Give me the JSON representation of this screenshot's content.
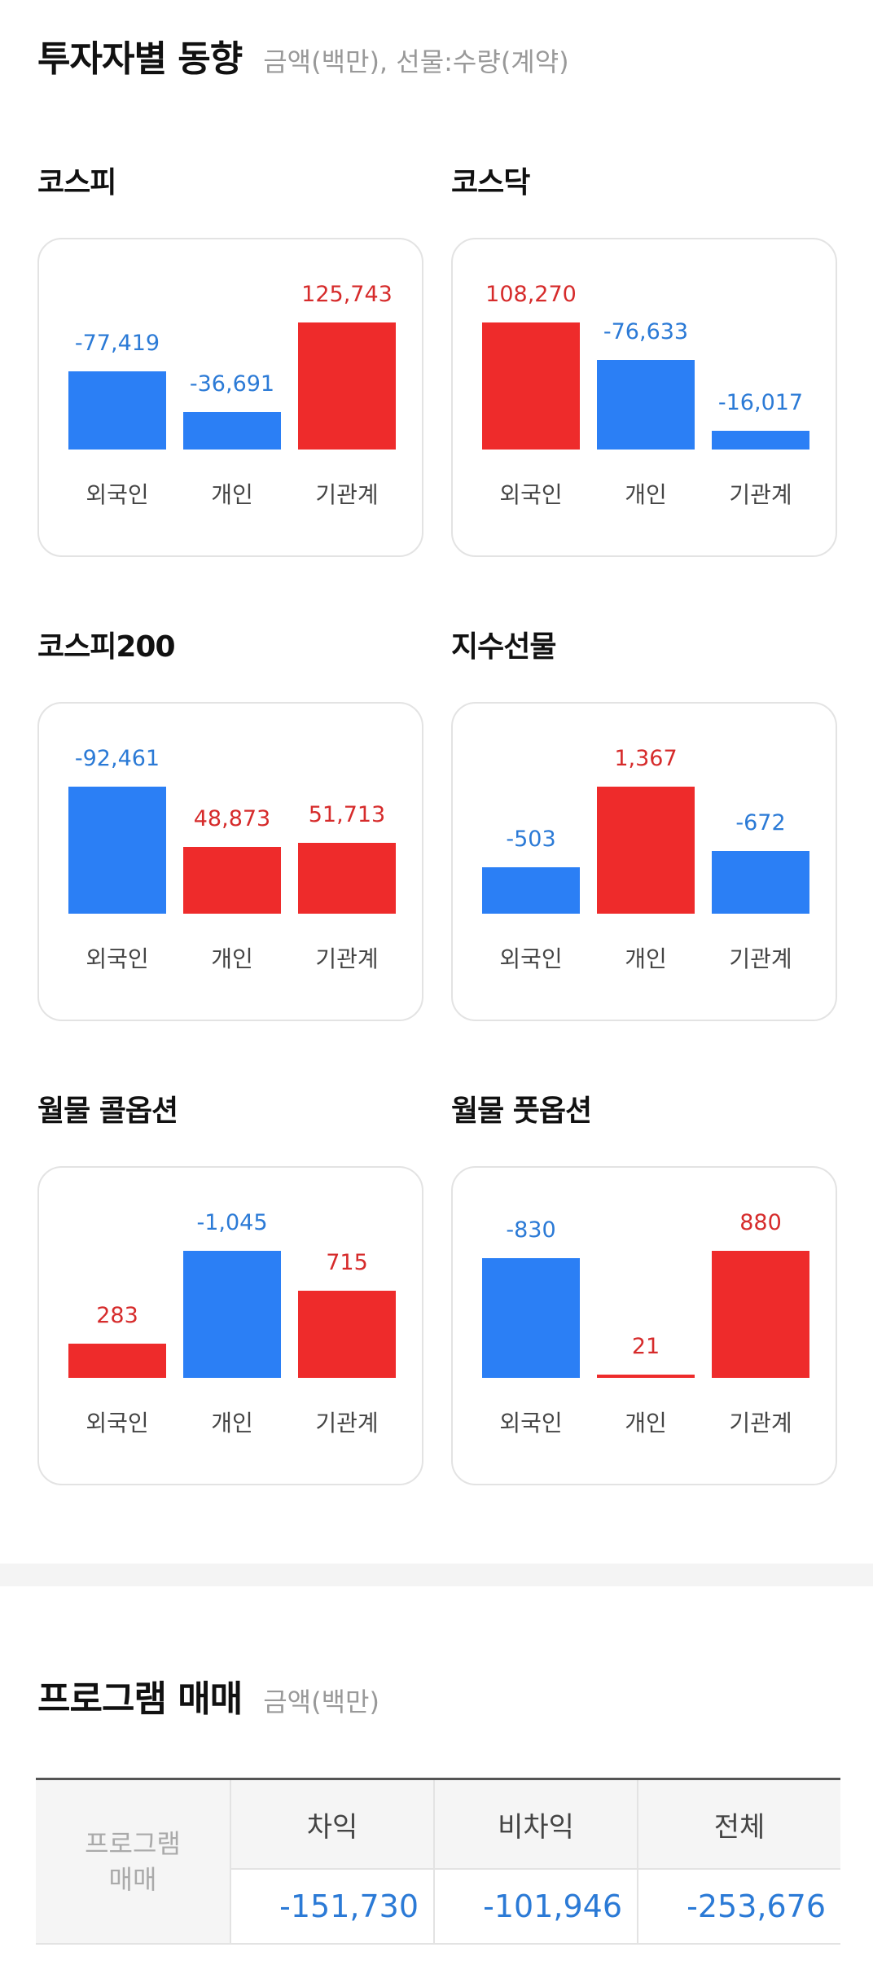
{
  "header": {
    "title": "투자자별 동향",
    "subtitle": "금액(백만), 선물:수량(계약)"
  },
  "cards": [
    {
      "title": "코스피",
      "chart_data": {
        "type": "bar",
        "categories": [
          "외국인",
          "개인",
          "기관계"
        ],
        "values": [
          -77419,
          -36691,
          125743
        ],
        "value_labels": [
          "-77,419",
          "-36,691",
          "125,743"
        ]
      }
    },
    {
      "title": "코스닥",
      "chart_data": {
        "type": "bar",
        "categories": [
          "외국인",
          "개인",
          "기관계"
        ],
        "values": [
          108270,
          -76633,
          -16017
        ],
        "value_labels": [
          "108,270",
          "-76,633",
          "-16,017"
        ]
      }
    },
    {
      "title": "코스피200",
      "chart_data": {
        "type": "bar",
        "categories": [
          "외국인",
          "개인",
          "기관계"
        ],
        "values": [
          -92461,
          48873,
          51713
        ],
        "value_labels": [
          "-92,461",
          "48,873",
          "51,713"
        ]
      }
    },
    {
      "title": "지수선물",
      "chart_data": {
        "type": "bar",
        "categories": [
          "외국인",
          "개인",
          "기관계"
        ],
        "values": [
          -503,
          1367,
          -672
        ],
        "value_labels": [
          "-503",
          "1,367",
          "-672"
        ]
      }
    },
    {
      "title": "월물 콜옵션",
      "chart_data": {
        "type": "bar",
        "categories": [
          "외국인",
          "개인",
          "기관계"
        ],
        "values": [
          283,
          -1045,
          715
        ],
        "value_labels": [
          "283",
          "-1,045",
          "715"
        ]
      }
    },
    {
      "title": "월물 풋옵션",
      "chart_data": {
        "type": "bar",
        "categories": [
          "외국인",
          "개인",
          "기관계"
        ],
        "values": [
          -830,
          21,
          880
        ],
        "value_labels": [
          "-830",
          "21",
          "880"
        ]
      }
    }
  ],
  "colors": {
    "positive": "#ee2b2b",
    "negative": "#2b7ff5"
  },
  "program": {
    "title": "프로그램 매매",
    "subtitle": "금액(백만)",
    "row_header_line1": "프로그램",
    "row_header_line2": "매매",
    "columns": [
      "차익",
      "비차익",
      "전체"
    ],
    "values": [
      "-151,730",
      "-101,946",
      "-253,676"
    ]
  }
}
